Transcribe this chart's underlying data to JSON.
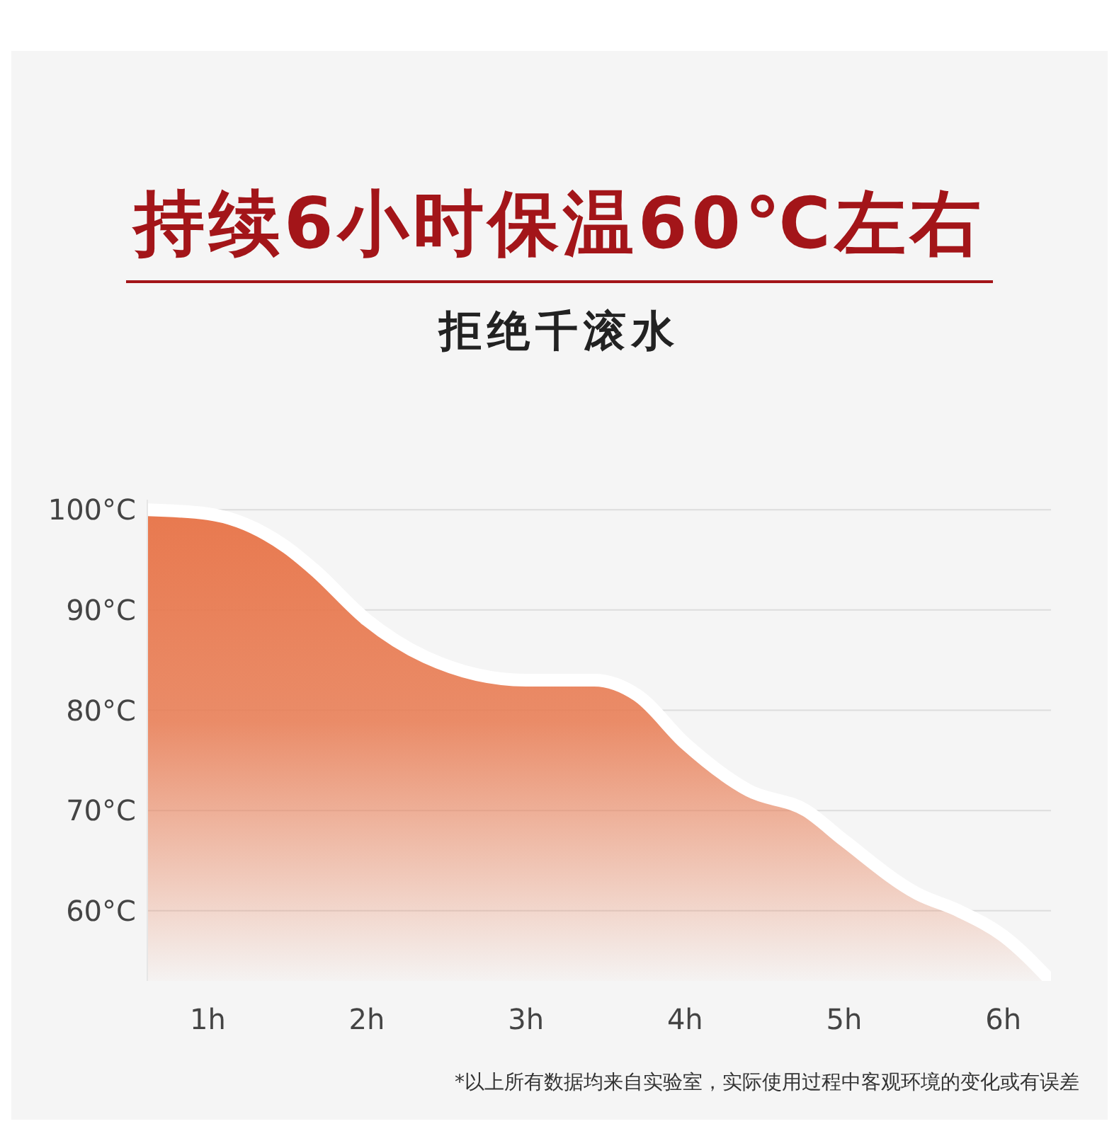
{
  "chart_data": {
    "type": "area",
    "title": "持续6小时保温60℃左右",
    "subtitle": "拒绝千滚水",
    "x": [
      0.62,
      1,
      1.5,
      1.67,
      2,
      2.37,
      3,
      3.43,
      3.7,
      4,
      4.4,
      4.76,
      5,
      5.46,
      5.72,
      6,
      6.3
    ],
    "series": [
      {
        "color": "#e8794f",
        "values": [
          100,
          99.6,
          96.2,
          94,
          89,
          85.3,
          83,
          83,
          81.5,
          76.7,
          72,
          70,
          67,
          61.7,
          60,
          57.5,
          53
        ]
      }
    ],
    "xlim": [
      0.62,
      6.3
    ],
    "xticks": [
      {
        "value": 1,
        "label": "1h"
      },
      {
        "value": 2,
        "label": "2h"
      },
      {
        "value": 3,
        "label": "3h"
      },
      {
        "value": 4,
        "label": "4h"
      },
      {
        "value": 5,
        "label": "5h"
      },
      {
        "value": 6,
        "label": "6h"
      }
    ],
    "ylim": [
      53,
      101
    ],
    "yticks": [
      {
        "value": 60,
        "label": "60°C"
      },
      {
        "value": 70,
        "label": "70°C"
      },
      {
        "value": 80,
        "label": "80°C"
      },
      {
        "value": 90,
        "label": "90°C"
      },
      {
        "value": 100,
        "label": "100°C"
      }
    ],
    "grid": "y",
    "annotations": [
      "*以上所有数据均来自实验室，实际使用过程中客观环境的变化或有误差"
    ]
  }
}
